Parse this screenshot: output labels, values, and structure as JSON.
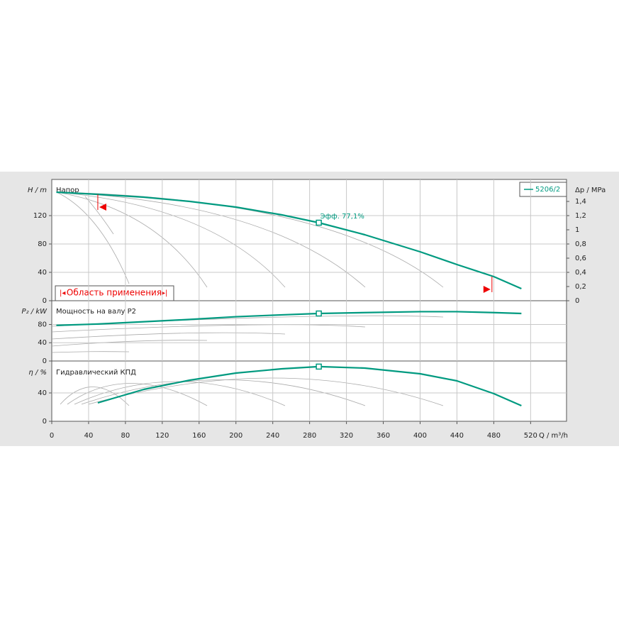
{
  "chart_data": [
    {
      "type": "line",
      "title": "Напор",
      "ylabel": "H / m",
      "y2label": "Δp / MPa",
      "xlim": [
        0,
        559
      ],
      "ylim": [
        0,
        171
      ],
      "yticks": [
        0,
        40,
        80,
        120
      ],
      "y2lim": [
        0,
        1.71
      ],
      "y2ticks": [
        0,
        {
          "value": 0.2,
          "label": "0,2"
        },
        {
          "value": 0.4,
          "label": "0,4"
        },
        {
          "value": 0.6,
          "label": "0,6"
        },
        {
          "value": 0.8,
          "label": "0,8"
        },
        1,
        {
          "value": 1.2,
          "label": "1,2"
        },
        {
          "value": 1.4,
          "label": "1,4"
        }
      ],
      "x": [
        5,
        50,
        100,
        150,
        200,
        250,
        290,
        340,
        400,
        440,
        480,
        510
      ],
      "series": [
        {
          "name": "5206/2",
          "color": "#009a80",
          "values": [
            153,
            150,
            146,
            140,
            132,
            121,
            110,
            93,
            69,
            51,
            34,
            17
          ]
        }
      ],
      "annotation": "Эфф. 77,1%",
      "duty_x": 290,
      "operating_range_label": "Область применения",
      "operating_range": [
        50,
        478
      ],
      "grid": true,
      "legend": "upper right"
    },
    {
      "type": "line",
      "title": "Мощность на валу P2",
      "ylabel": "P₂ / kW",
      "xlim": [
        0,
        559
      ],
      "ylim": [
        0,
        132
      ],
      "yticks": [
        0,
        40,
        80
      ],
      "x": [
        5,
        50,
        100,
        150,
        200,
        250,
        290,
        340,
        400,
        440,
        480,
        510
      ],
      "series": [
        {
          "color": "#009a80",
          "values": [
            78,
            81,
            86,
            91,
            97,
            101,
            104,
            106,
            108,
            108,
            106,
            104
          ]
        }
      ],
      "duty_x": 290,
      "grid": true
    },
    {
      "type": "line",
      "title": "Гидравлический КПД",
      "ylabel": "η / %",
      "xlabel": "Q / m³/h",
      "xlim": [
        0,
        559
      ],
      "ylim": [
        0,
        84
      ],
      "yticks": [
        0,
        40
      ],
      "xticks": [
        0,
        40,
        80,
        120,
        160,
        200,
        240,
        280,
        320,
        360,
        400,
        440,
        480,
        520
      ],
      "x": [
        5,
        50,
        100,
        150,
        200,
        250,
        290,
        340,
        400,
        440,
        480,
        510
      ],
      "series": [
        {
          "color": "#009a80",
          "values": [
            null,
            26,
            45,
            58,
            68,
            74,
            77.1,
            75,
            67,
            57,
            39,
            22
          ]
        }
      ],
      "duty_x": 290,
      "grid": true
    }
  ]
}
